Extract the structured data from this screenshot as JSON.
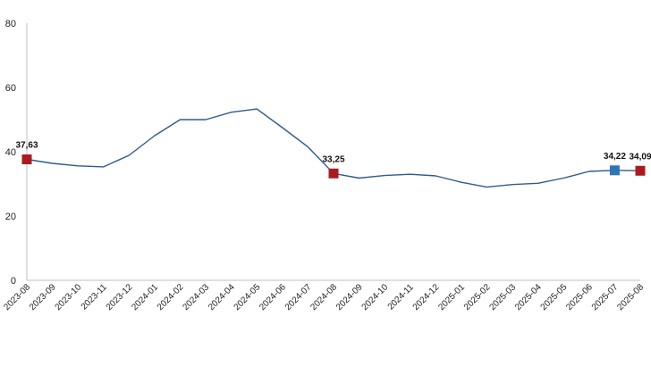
{
  "chart_data": {
    "type": "line",
    "title": "",
    "xlabel": "",
    "ylabel": "",
    "ylim": [
      0,
      80
    ],
    "yticks": [
      "0",
      "20",
      "40",
      "60",
      "80"
    ],
    "grid": false,
    "legend": "none",
    "categories": [
      "2023-08",
      "2023-09",
      "2023-10",
      "2023-11",
      "2023-12",
      "2024-01",
      "2024-02",
      "2024-03",
      "2024-04",
      "2024-05",
      "2024-06",
      "2024-07",
      "2024-08",
      "2024-09",
      "2024-10",
      "2024-11",
      "2024-12",
      "2025-01",
      "2025-02",
      "2025-03",
      "2025-04",
      "2025-05",
      "2025-06",
      "2025-07",
      "2025-08"
    ],
    "series": [
      {
        "values": [
          37.63,
          36.4,
          35.6,
          35.3,
          38.9,
          45.0,
          50.0,
          50.0,
          52.3,
          53.3,
          47.5,
          41.5,
          33.25,
          31.8,
          32.6,
          33.0,
          32.5,
          30.5,
          29.0,
          29.8,
          30.2,
          31.8,
          33.9,
          34.22,
          34.09
        ],
        "color": "#2e5a8e"
      }
    ],
    "highlighted_points": [
      {
        "category": "2023-08",
        "label": "37,63",
        "value": 37.63,
        "color": "#a81c20"
      },
      {
        "category": "2024-08",
        "label": "33,25",
        "value": 33.25,
        "color": "#a81c20"
      },
      {
        "category": "2025-07",
        "label": "34,22",
        "value": 34.22,
        "color": "#2e75b6"
      },
      {
        "category": "2025-08",
        "label": "34,09",
        "value": 34.09,
        "color": "#a81c20"
      }
    ]
  }
}
